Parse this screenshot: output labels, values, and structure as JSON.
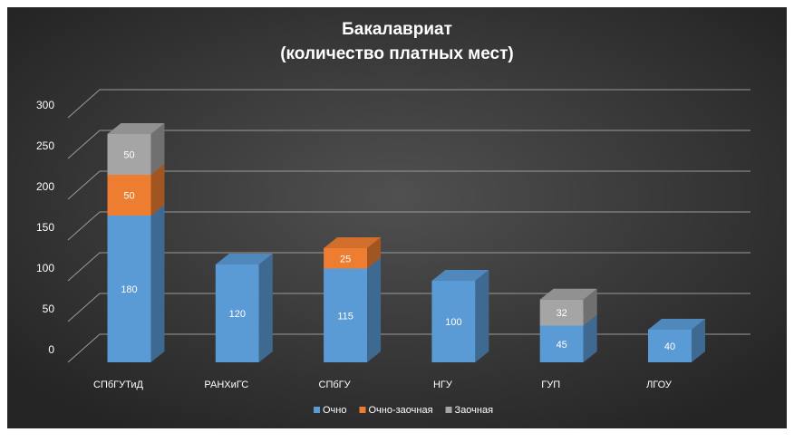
{
  "chart_data": {
    "type": "bar",
    "stacked": true,
    "three_d": true,
    "title_line1": "Бакалавриат",
    "title_line2": "(количество платных мест)",
    "categories": [
      "СПбГУТиД",
      "РАНХиГС",
      "СПбГУ",
      "НГУ",
      "ГУП",
      "ЛГОУ"
    ],
    "series": [
      {
        "name": "Очно",
        "color": "#5b9bd5",
        "values": [
          180,
          120,
          115,
          100,
          45,
          40
        ]
      },
      {
        "name": "Очно-заочная",
        "color": "#ed7d31",
        "values": [
          50,
          null,
          25,
          null,
          null,
          null
        ]
      },
      {
        "name": "Заочная",
        "color": "#a5a5a5",
        "values": [
          50,
          null,
          null,
          null,
          32,
          null
        ]
      }
    ],
    "y_ticks": [
      0,
      50,
      100,
      150,
      200,
      250,
      300
    ],
    "ylim": [
      0,
      300
    ],
    "grid": true,
    "legend_position": "bottom",
    "background_color": "#3a3a3a",
    "text_color": "#ffffff"
  }
}
